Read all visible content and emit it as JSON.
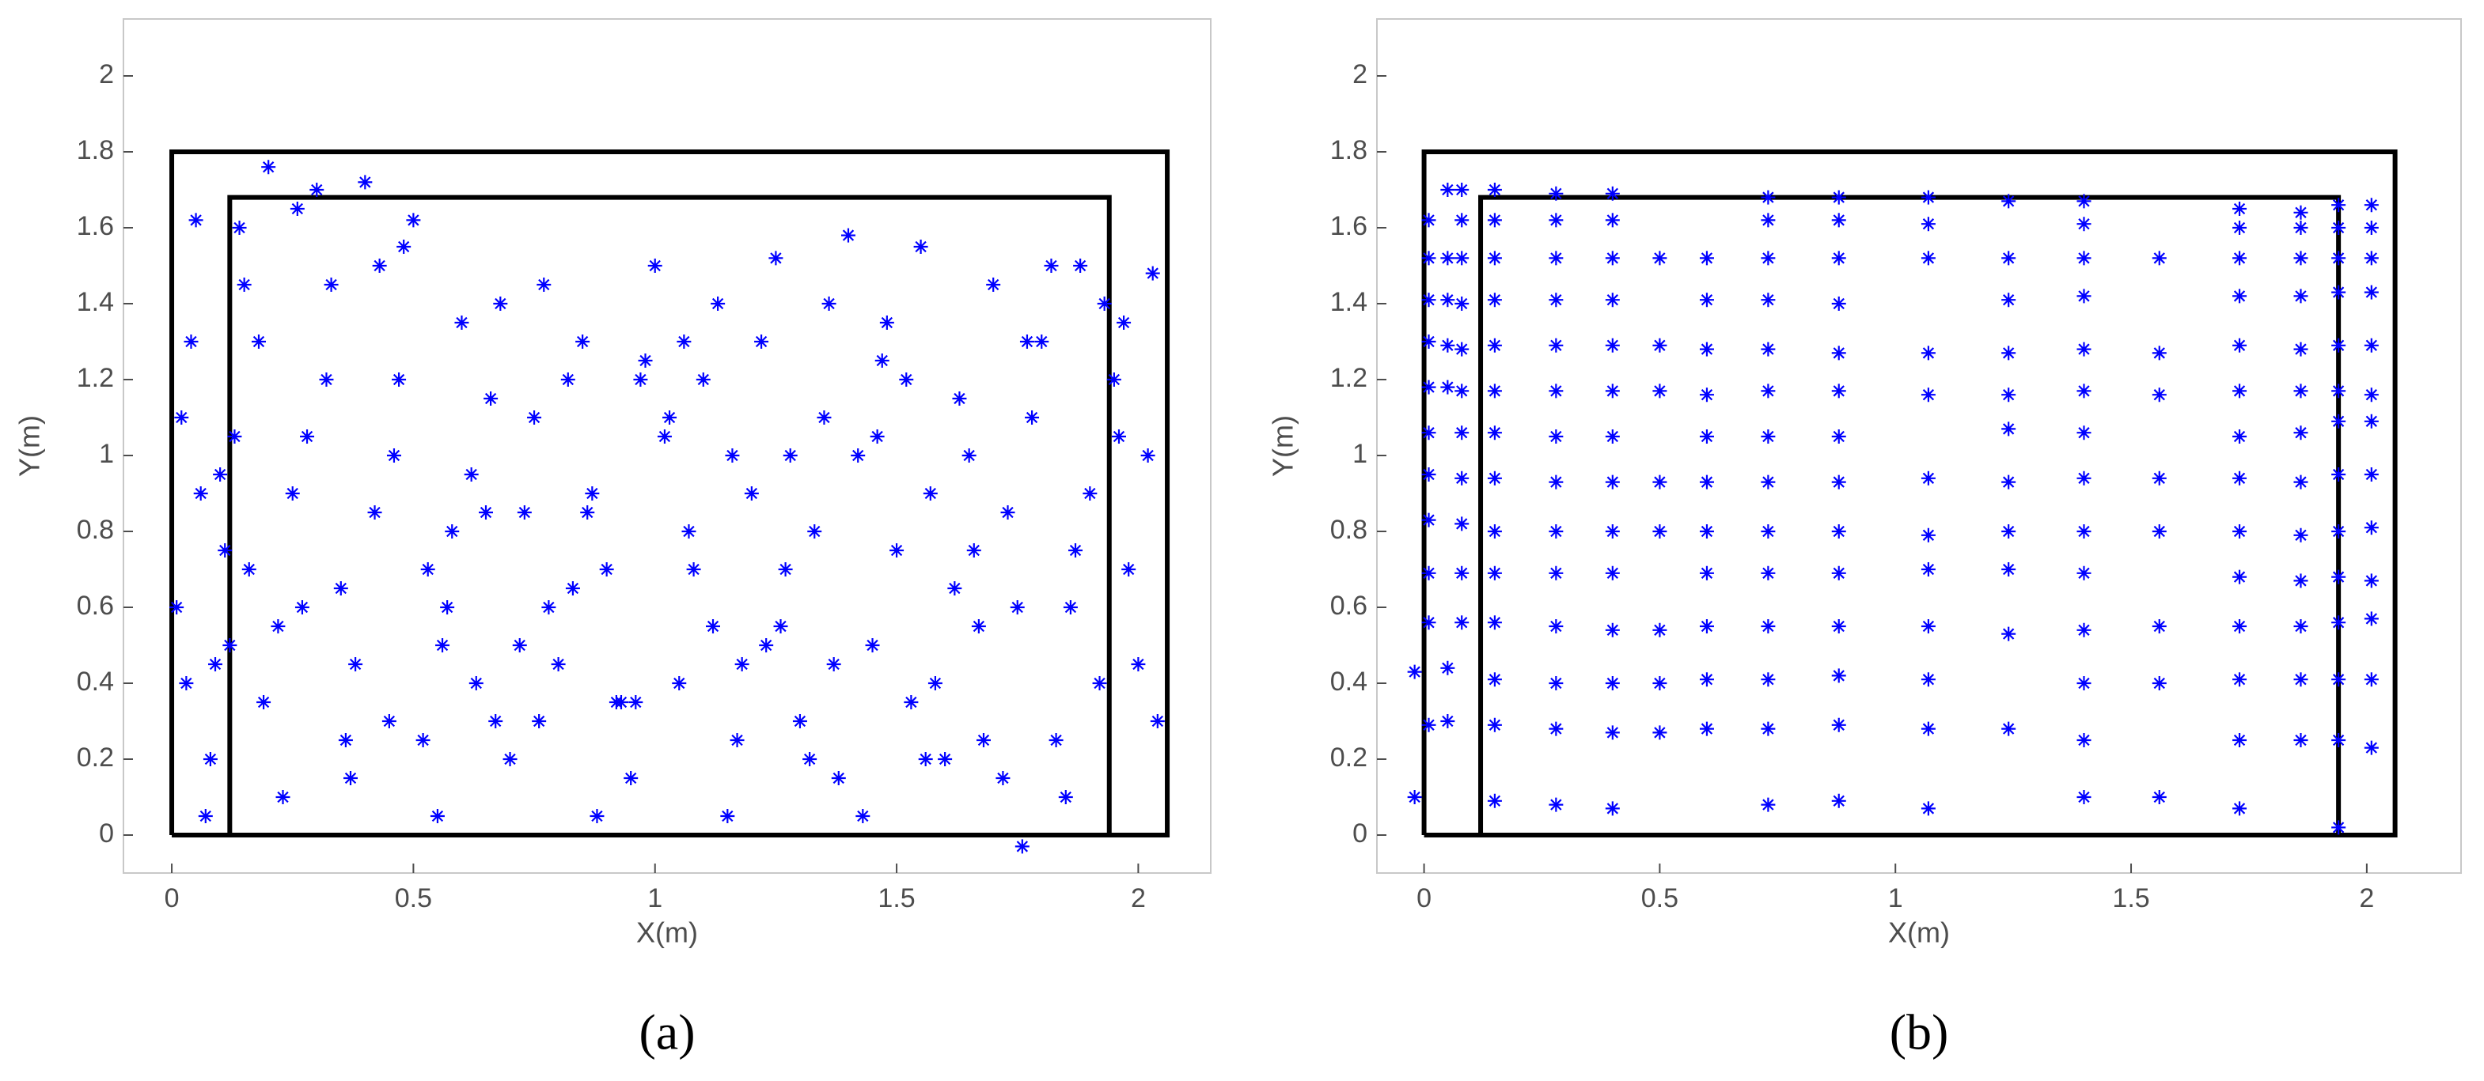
{
  "chart_data": [
    {
      "type": "scatter",
      "caption": "(a)",
      "x_label": "X(m)",
      "y_label": "Y(m)",
      "color": "#0000ff",
      "xlim": [
        -0.1,
        2.15
      ],
      "ylim": [
        -0.1,
        2.15
      ],
      "xticks": [
        0,
        0.5,
        1,
        1.5,
        2
      ],
      "yticks": [
        0,
        0.2,
        0.4,
        0.6,
        0.8,
        1,
        1.2,
        1.4,
        1.6,
        1.8,
        2
      ],
      "lines": [
        {
          "color": "#000000",
          "x": [
            0,
            0,
            2.06,
            2.06,
            0
          ],
          "values": [
            0,
            1.8,
            1.8,
            0,
            0
          ]
        },
        {
          "color": "#000000",
          "x": [
            0.12,
            0.12,
            1.94,
            1.94
          ],
          "values": [
            0,
            1.68,
            1.68,
            0
          ]
        }
      ],
      "x": [
        0.02,
        0.05,
        0.08,
        0.12,
        0.15,
        0.2,
        0.25,
        0.3,
        0.35,
        0.4,
        0.45,
        0.5,
        0.55,
        0.6,
        0.65,
        0.7,
        0.75,
        0.8,
        0.85,
        0.9,
        0.95,
        1.0,
        1.05,
        1.1,
        1.15,
        1.2,
        1.25,
        1.3,
        1.35,
        1.4,
        1.45,
        1.5,
        1.55,
        1.6,
        1.65,
        1.7,
        1.75,
        1.8,
        1.85,
        1.9,
        1.95,
        2.0,
        2.03,
        0.03,
        0.1,
        0.18,
        0.28,
        0.38,
        0.48,
        0.58,
        0.68,
        0.78,
        0.88,
        0.98,
        1.08,
        1.18,
        1.28,
        1.38,
        1.48,
        1.58,
        1.68,
        1.78,
        1.88,
        1.98,
        0.01,
        0.07,
        0.14,
        0.22,
        0.32,
        0.42,
        0.52,
        0.62,
        0.72,
        0.82,
        0.92,
        1.02,
        1.12,
        1.22,
        1.32,
        1.42,
        1.52,
        1.62,
        1.72,
        1.82,
        1.92,
        2.02,
        0.04,
        0.11,
        0.19,
        0.27,
        0.37,
        0.47,
        0.57,
        0.67,
        0.77,
        0.87,
        0.97,
        1.07,
        1.17,
        1.27,
        1.37,
        1.47,
        1.57,
        1.67,
        1.77,
        1.87,
        1.97,
        0.06,
        0.13,
        0.23,
        0.33,
        0.43,
        0.53,
        0.63,
        0.73,
        0.83,
        0.93,
        1.03,
        1.13,
        1.23,
        1.33,
        1.43,
        1.53,
        1.63,
        1.73,
        1.83,
        1.93,
        2.04,
        0.09,
        0.16,
        0.26,
        0.36,
        0.46,
        0.56,
        0.66,
        0.76,
        0.86,
        0.96,
        1.06,
        1.16,
        1.26,
        1.36,
        1.46,
        1.56,
        1.66,
        1.76,
        1.86,
        1.96
      ],
      "values": [
        1.1,
        1.62,
        0.2,
        0.5,
        1.45,
        1.76,
        0.9,
        1.7,
        0.65,
        1.72,
        0.3,
        1.62,
        0.05,
        1.35,
        0.85,
        0.2,
        1.1,
        0.45,
        1.3,
        0.7,
        0.15,
        1.5,
        0.4,
        1.2,
        0.05,
        0.9,
        1.52,
        0.3,
        1.1,
        1.58,
        0.5,
        0.75,
        1.55,
        0.2,
        1.0,
        1.45,
        0.6,
        1.3,
        0.1,
        0.9,
        1.2,
        0.45,
        1.48,
        0.4,
        0.95,
        1.3,
        1.05,
        0.45,
        1.55,
        0.8,
        1.4,
        0.6,
        0.05,
        1.25,
        0.7,
        0.45,
        1.0,
        0.15,
        1.35,
        0.4,
        0.25,
        1.1,
        1.5,
        0.7,
        0.6,
        0.05,
        1.6,
        0.55,
        1.2,
        0.85,
        0.25,
        0.95,
        0.5,
        1.2,
        0.35,
        1.05,
        0.55,
        1.3,
        0.2,
        1.0,
        1.2,
        0.65,
        0.15,
        1.5,
        0.4,
        1.0,
        1.3,
        0.75,
        0.35,
        0.6,
        0.15,
        1.2,
        0.6,
        0.3,
        1.45,
        0.9,
        1.2,
        0.8,
        0.25,
        0.7,
        0.45,
        1.25,
        0.9,
        0.55,
        1.3,
        0.75,
        1.35,
        0.9,
        1.05,
        0.1,
        1.45,
        1.5,
        0.7,
        0.4,
        0.85,
        0.65,
        0.35,
        1.1,
        1.4,
        0.5,
        0.8,
        0.05,
        0.35,
        1.15,
        0.85,
        0.25,
        1.4,
        0.3,
        0.45,
        0.7,
        1.65,
        0.25,
        1.0,
        0.5,
        1.15,
        0.3,
        0.85,
        0.35,
        1.3,
        1.0,
        0.55,
        1.4,
        1.05,
        0.2,
        0.75,
        -0.03,
        0.6,
        1.05
      ]
    },
    {
      "type": "scatter",
      "caption": "(b)",
      "x_label": "X(m)",
      "y_label": "Y(m)",
      "color": "#0000ff",
      "xlim": [
        -0.1,
        2.2
      ],
      "ylim": [
        -0.1,
        2.15
      ],
      "xticks": [
        0,
        0.5,
        1,
        1.5,
        2
      ],
      "yticks": [
        0,
        0.2,
        0.4,
        0.6,
        0.8,
        1,
        1.2,
        1.4,
        1.6,
        1.8,
        2
      ],
      "lines": [
        {
          "color": "#000000",
          "x": [
            0,
            0,
            2.06,
            2.06,
            0
          ],
          "values": [
            0,
            1.8,
            1.8,
            0,
            0
          ]
        },
        {
          "color": "#000000",
          "x": [
            0.12,
            0.12,
            1.94,
            1.94
          ],
          "values": [
            0,
            1.68,
            1.68,
            0
          ]
        }
      ],
      "x": [
        -0.02,
        -0.02,
        0.01,
        0.01,
        0.01,
        0.01,
        0.01,
        0.01,
        0.01,
        0.01,
        0.01,
        0.01,
        0.01,
        0.05,
        0.05,
        0.05,
        0.05,
        0.05,
        0.05,
        0.05,
        0.08,
        0.08,
        0.08,
        0.08,
        0.08,
        0.08,
        0.08,
        0.08,
        0.08,
        0.08,
        0.08,
        0.15,
        0.15,
        0.15,
        0.15,
        0.15,
        0.15,
        0.15,
        0.15,
        0.15,
        0.15,
        0.15,
        0.15,
        0.15,
        0.15,
        0.28,
        0.28,
        0.28,
        0.28,
        0.28,
        0.28,
        0.28,
        0.28,
        0.28,
        0.28,
        0.28,
        0.28,
        0.28,
        0.28,
        0.4,
        0.4,
        0.4,
        0.4,
        0.4,
        0.4,
        0.4,
        0.4,
        0.4,
        0.4,
        0.4,
        0.4,
        0.4,
        0.4,
        0.5,
        0.5,
        0.5,
        0.5,
        0.5,
        0.5,
        0.5,
        0.5,
        0.6,
        0.6,
        0.6,
        0.6,
        0.6,
        0.6,
        0.6,
        0.6,
        0.6,
        0.6,
        0.6,
        0.73,
        0.73,
        0.73,
        0.73,
        0.73,
        0.73,
        0.73,
        0.73,
        0.73,
        0.73,
        0.73,
        0.73,
        0.73,
        0.73,
        0.88,
        0.88,
        0.88,
        0.88,
        0.88,
        0.88,
        0.88,
        0.88,
        0.88,
        0.88,
        0.88,
        0.88,
        0.88,
        0.88,
        1.07,
        1.07,
        1.07,
        1.07,
        1.07,
        1.07,
        1.07,
        1.07,
        1.07,
        1.07,
        1.07,
        1.07,
        1.24,
        1.24,
        1.24,
        1.24,
        1.24,
        1.24,
        1.24,
        1.24,
        1.24,
        1.24,
        1.24,
        1.4,
        1.4,
        1.4,
        1.4,
        1.4,
        1.4,
        1.4,
        1.4,
        1.4,
        1.4,
        1.4,
        1.4,
        1.4,
        1.4,
        1.56,
        1.56,
        1.56,
        1.56,
        1.56,
        1.56,
        1.56,
        1.56,
        1.73,
        1.73,
        1.73,
        1.73,
        1.73,
        1.73,
        1.73,
        1.73,
        1.73,
        1.73,
        1.73,
        1.73,
        1.73,
        1.73,
        1.86,
        1.86,
        1.86,
        1.86,
        1.86,
        1.86,
        1.86,
        1.86,
        1.86,
        1.86,
        1.86,
        1.86,
        1.86,
        1.94,
        1.94,
        1.94,
        1.94,
        1.94,
        1.94,
        1.94,
        1.94,
        1.94,
        1.94,
        1.94,
        1.94,
        1.94,
        1.94,
        2.01,
        2.01,
        2.01,
        2.01,
        2.01,
        2.01,
        2.01,
        2.01,
        2.01,
        2.01,
        2.01,
        2.01,
        2.01
      ],
      "values": [
        0.1,
        0.43,
        0.29,
        0.56,
        0.69,
        0.83,
        0.95,
        1.06,
        1.18,
        1.3,
        1.41,
        1.52,
        1.62,
        0.3,
        0.44,
        1.18,
        1.29,
        1.41,
        1.52,
        1.7,
        0.56,
        0.69,
        0.82,
        0.94,
        1.06,
        1.17,
        1.28,
        1.4,
        1.52,
        1.62,
        1.7,
        0.09,
        0.29,
        0.41,
        0.56,
        0.69,
        0.8,
        0.94,
        1.06,
        1.17,
        1.29,
        1.41,
        1.52,
        1.62,
        1.7,
        0.08,
        0.28,
        0.4,
        0.55,
        0.69,
        0.8,
        0.93,
        1.05,
        1.17,
        1.29,
        1.41,
        1.52,
        1.62,
        1.69,
        0.07,
        0.27,
        0.4,
        0.54,
        0.69,
        0.8,
        0.93,
        1.05,
        1.17,
        1.29,
        1.41,
        1.52,
        1.62,
        1.69,
        0.27,
        0.4,
        0.54,
        0.8,
        0.93,
        1.17,
        1.29,
        1.52,
        0.28,
        0.41,
        0.55,
        0.69,
        0.8,
        0.93,
        1.05,
        1.16,
        1.28,
        1.41,
        1.52,
        0.08,
        0.28,
        0.41,
        0.55,
        0.69,
        0.8,
        0.93,
        1.05,
        1.17,
        1.28,
        1.41,
        1.52,
        1.62,
        1.68,
        0.09,
        0.29,
        0.42,
        0.55,
        0.69,
        0.8,
        0.93,
        1.05,
        1.17,
        1.27,
        1.4,
        1.52,
        1.62,
        1.68,
        0.07,
        0.28,
        0.41,
        0.55,
        0.7,
        0.79,
        0.94,
        1.16,
        1.27,
        1.52,
        1.61,
        1.68,
        0.28,
        0.53,
        0.7,
        0.8,
        0.93,
        1.07,
        1.16,
        1.27,
        1.41,
        1.52,
        1.67,
        0.1,
        0.25,
        0.4,
        0.54,
        0.69,
        0.8,
        0.94,
        1.06,
        1.17,
        1.28,
        1.42,
        1.52,
        1.61,
        1.67,
        0.1,
        0.4,
        0.55,
        0.8,
        0.94,
        1.16,
        1.27,
        1.52,
        0.07,
        0.25,
        0.41,
        0.55,
        0.68,
        0.8,
        0.94,
        1.05,
        1.17,
        1.29,
        1.42,
        1.52,
        1.6,
        1.65,
        0.25,
        0.41,
        0.55,
        0.67,
        0.79,
        0.93,
        1.06,
        1.17,
        1.28,
        1.42,
        1.52,
        1.6,
        1.64,
        0.02,
        0.25,
        0.41,
        0.56,
        0.68,
        0.8,
        0.95,
        1.09,
        1.17,
        1.29,
        1.43,
        1.52,
        1.6,
        1.66,
        0.23,
        0.41,
        0.57,
        0.67,
        0.81,
        0.95,
        1.09,
        1.16,
        1.29,
        1.43,
        1.52,
        1.6,
        1.66
      ]
    }
  ]
}
